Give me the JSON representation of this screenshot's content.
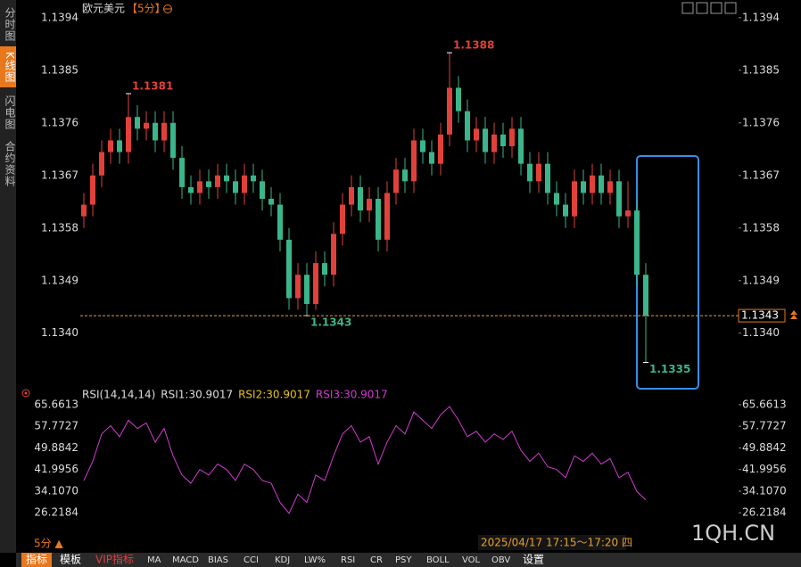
{
  "sidebar": {
    "tabs": [
      "分时图",
      "K线图",
      "闪电图",
      "合约资料"
    ],
    "active": 1
  },
  "chart_data": [
    {
      "type": "candlestick",
      "title": "欧元美元",
      "subtitle": "【5分】",
      "up_color": "#e0413a",
      "down_color": "#3bb58a",
      "ylim": [
        1.13305,
        1.13955
      ],
      "yticks": [
        1.1394,
        1.1385,
        1.1376,
        1.1367,
        1.1358,
        1.1349,
        {
          "value": 1.134,
          "label": "1.1340"
        }
      ],
      "open": [
        1.136,
        1.1362,
        1.1367,
        1.1371,
        1.1373,
        1.1371,
        1.1377,
        1.1375,
        1.1376,
        1.1373,
        1.1376,
        1.137,
        1.1365,
        1.1364,
        1.1366,
        1.1365,
        1.1367,
        1.1366,
        1.1364,
        1.1367,
        1.1366,
        1.1363,
        1.1362,
        1.1356,
        1.1346,
        1.135,
        1.1345,
        1.1352,
        1.135,
        1.1357,
        1.1362,
        1.1365,
        1.1361,
        1.1363,
        1.1356,
        1.1364,
        1.1368,
        1.1366,
        1.1373,
        1.1371,
        1.1369,
        1.1374,
        1.1382,
        1.1378,
        1.1373,
        1.1375,
        1.1371,
        1.1374,
        1.1372,
        1.1375,
        1.1369,
        1.1366,
        1.1369,
        1.1364,
        1.1362,
        1.136,
        1.1366,
        1.1364,
        1.1367,
        1.1364,
        1.1366,
        1.136,
        1.1361,
        1.135
      ],
      "high": [
        1.1364,
        1.1369,
        1.1373,
        1.1375,
        1.1375,
        1.1381,
        1.1379,
        1.1378,
        1.1378,
        1.1378,
        1.1378,
        1.1372,
        1.1367,
        1.1368,
        1.1368,
        1.1369,
        1.1369,
        1.1368,
        1.1369,
        1.1369,
        1.1368,
        1.1365,
        1.1364,
        1.1358,
        1.1352,
        1.1352,
        1.1354,
        1.1354,
        1.1359,
        1.1364,
        1.1367,
        1.1367,
        1.1365,
        1.1365,
        1.1366,
        1.137,
        1.137,
        1.1375,
        1.1375,
        1.1373,
        1.1376,
        1.1388,
        1.1384,
        1.138,
        1.1377,
        1.1377,
        1.1376,
        1.1376,
        1.1377,
        1.1377,
        1.1371,
        1.1371,
        1.1371,
        1.1366,
        1.1364,
        1.1368,
        1.1368,
        1.1369,
        1.1369,
        1.1368,
        1.1368,
        1.1366,
        1.1363,
        1.1352
      ],
      "low": [
        1.1358,
        1.136,
        1.1365,
        1.1369,
        1.1369,
        1.1369,
        1.1373,
        1.1373,
        1.1371,
        1.1371,
        1.1368,
        1.1363,
        1.1362,
        1.1362,
        1.1363,
        1.1363,
        1.1364,
        1.1362,
        1.1362,
        1.1364,
        1.1361,
        1.136,
        1.1354,
        1.1344,
        1.1344,
        1.1343,
        1.1344,
        1.1348,
        1.1348,
        1.1355,
        1.136,
        1.1359,
        1.1359,
        1.1354,
        1.1354,
        1.1362,
        1.1364,
        1.1364,
        1.1369,
        1.1367,
        1.1367,
        1.1372,
        1.1376,
        1.1371,
        1.1371,
        1.1369,
        1.1369,
        1.137,
        1.137,
        1.1367,
        1.1364,
        1.1364,
        1.1362,
        1.136,
        1.1358,
        1.1358,
        1.1362,
        1.1362,
        1.1362,
        1.1362,
        1.1358,
        1.1358,
        1.1348,
        1.1335
      ],
      "close": [
        1.1362,
        1.1367,
        1.1371,
        1.1373,
        1.1371,
        1.1377,
        1.1375,
        1.1376,
        1.1373,
        1.1376,
        1.137,
        1.1365,
        1.1364,
        1.1366,
        1.1365,
        1.1367,
        1.1366,
        1.1364,
        1.1367,
        1.1366,
        1.1363,
        1.1362,
        1.1356,
        1.1346,
        1.135,
        1.1345,
        1.1352,
        1.135,
        1.1357,
        1.1362,
        1.1365,
        1.1361,
        1.1363,
        1.1356,
        1.1364,
        1.1368,
        1.1366,
        1.1373,
        1.1371,
        1.1369,
        1.1374,
        1.1382,
        1.1378,
        1.1373,
        1.1375,
        1.1371,
        1.1374,
        1.1372,
        1.1375,
        1.1369,
        1.1366,
        1.1369,
        1.1364,
        1.1362,
        1.136,
        1.1366,
        1.1364,
        1.1367,
        1.1364,
        1.1366,
        1.136,
        1.1361,
        1.135,
        1.1343
      ]
    },
    {
      "type": "line",
      "legend": [
        {
          "text": "RSI(14,14,14)",
          "color": "#dddddd"
        },
        {
          "text": "RSI1:30.9017",
          "color": "#dddddd"
        },
        {
          "text": "RSI2:30.9017",
          "color": "#e8c21e"
        },
        {
          "text": "RSI3:30.9017",
          "color": "#d23ad2"
        }
      ],
      "ylim": [
        21.4,
        67.6
      ],
      "yticks": [
        65.6613,
        57.7727,
        49.8842,
        41.9956,
        {
          "value": 34.107,
          "label": "34.1070"
        },
        26.2184
      ],
      "series": [
        {
          "name": "RSI1",
          "color": "#d23ad2",
          "values": [
            38,
            45,
            55,
            58,
            54,
            60,
            57,
            59,
            52,
            57,
            47,
            40,
            37,
            42,
            40,
            44,
            42,
            38,
            44,
            42,
            38,
            37,
            30,
            26,
            33,
            30,
            40,
            38,
            47,
            55,
            58,
            52,
            54,
            44,
            52,
            58,
            55,
            63,
            60,
            57,
            62,
            65,
            60,
            54,
            56,
            52,
            55,
            53,
            56,
            49,
            45,
            48,
            43,
            42,
            39,
            47,
            45,
            48,
            44,
            46,
            39,
            41,
            34,
            30.9017
          ]
        }
      ]
    }
  ],
  "footer": {
    "period": "5分 ▲",
    "time": "2025/04/17 17:15～17:20 四",
    "watermark": "1QH.CN",
    "items": [
      "指标",
      "模板",
      "VIP指标",
      "MA",
      "MACD",
      "BIAS",
      "CCI",
      "KDJ",
      "LW%",
      "RSI",
      "CR",
      "PSY",
      "BOLL",
      "VOL",
      "OBV",
      "设置"
    ]
  }
}
